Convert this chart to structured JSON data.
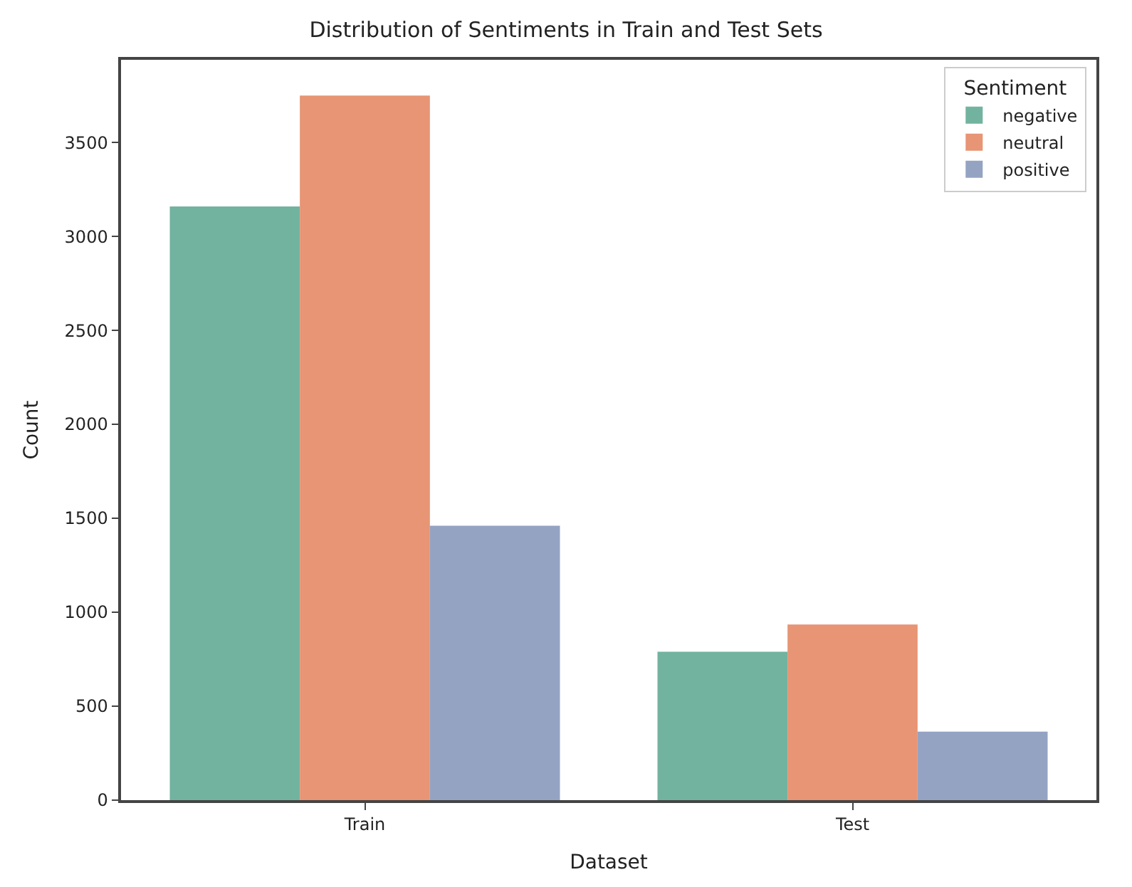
{
  "chart_data": {
    "type": "bar",
    "title": "Distribution of Sentiments in Train and Test Sets",
    "xlabel": "Dataset",
    "ylabel": "Count",
    "legend_title": "Sentiment",
    "categories": [
      "Train",
      "Test"
    ],
    "series": [
      {
        "name": "negative",
        "color": "#72b39f",
        "values": [
          3160,
          790
        ]
      },
      {
        "name": "neutral",
        "color": "#e79574",
        "values": [
          3750,
          935
        ]
      },
      {
        "name": "positive",
        "color": "#95a3c3",
        "values": [
          1460,
          365
        ]
      }
    ],
    "ylim": [
      0,
      3940
    ],
    "yticks": [
      0,
      500,
      1000,
      1500,
      2000,
      2500,
      3000,
      3500
    ],
    "legend": "top right"
  }
}
